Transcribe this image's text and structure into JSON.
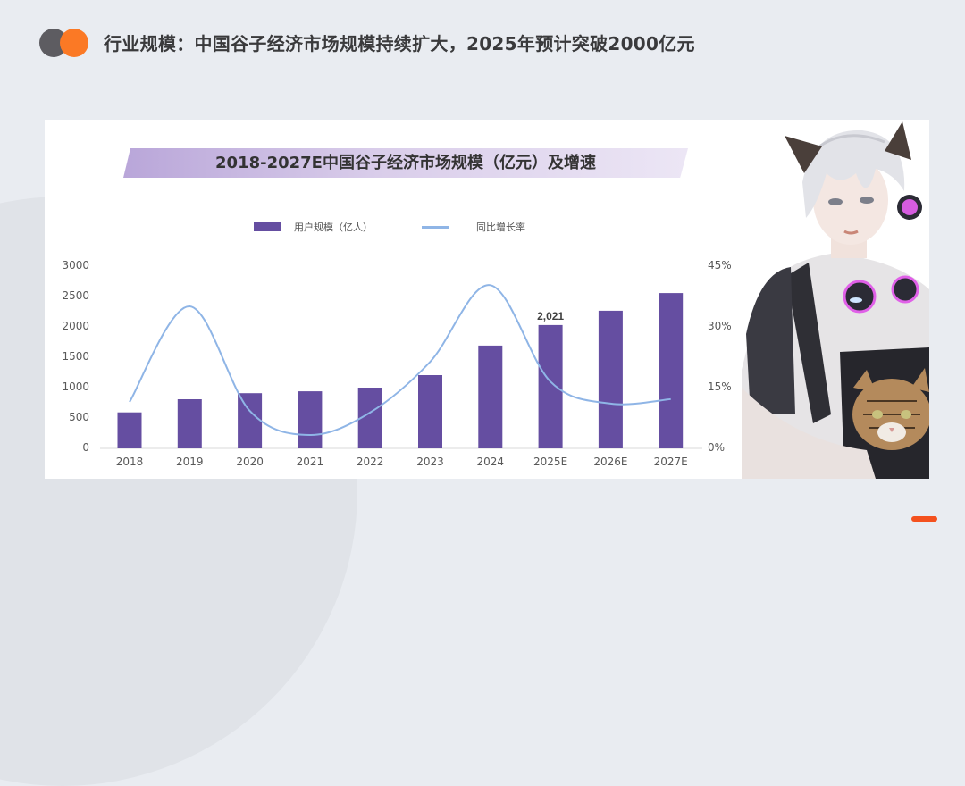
{
  "page": {
    "title": "行业规模：中国谷子经济市场规模持续扩大，2025年预计突破2000亿元",
    "colors": {
      "background": "#e9ecf1",
      "logo_dark": "#5d5c61",
      "logo_orange": "#fb7925",
      "accent_bar": "#f4511e"
    }
  },
  "chart": {
    "title": "2018-2027E中国谷子经济市场规模（亿元）及增速",
    "legend": {
      "bar_label": "用户规模（亿人）",
      "line_label": "同比增长率"
    },
    "left_axis_ticks": [
      "3000",
      "2500",
      "2000",
      "1500",
      "1000",
      "500",
      "0"
    ],
    "right_axis_ticks": [
      "45%",
      "30%",
      "15%",
      "0%"
    ],
    "x_labels": [
      "2018",
      "2019",
      "2020",
      "2021",
      "2022",
      "2023",
      "2024",
      "2025E",
      "2026E",
      "2027E"
    ],
    "highlight_label": "2,021"
  },
  "chart_data": {
    "type": "bar",
    "title": "2018-2027E中国谷子经济市场规模（亿元）及增速",
    "categories": [
      "2018",
      "2019",
      "2020",
      "2021",
      "2022",
      "2023",
      "2024",
      "2025E",
      "2026E",
      "2027E"
    ],
    "series": [
      {
        "name": "用户规模（亿人）",
        "type": "bar",
        "axis": "left",
        "color": "#654ea1",
        "values": [
          590,
          805,
          905,
          935,
          995,
          1200,
          1685,
          2021,
          2255,
          2545
        ]
      },
      {
        "name": "同比增长率",
        "type": "line",
        "axis": "right",
        "color": "#8fb5e6",
        "values": [
          11.4,
          34.9,
          9.2,
          3.3,
          8.8,
          21.3,
          40.1,
          16.4,
          11.0,
          12.1
        ]
      }
    ],
    "data_labels": [
      {
        "category": "2025E",
        "text": "2,021"
      }
    ],
    "xlabel": "",
    "ylabel": "",
    "ylim": [
      0,
      3000
    ],
    "y2lim": [
      0,
      45
    ],
    "y2_format": "percent",
    "legend_position": "top",
    "grid": false
  }
}
